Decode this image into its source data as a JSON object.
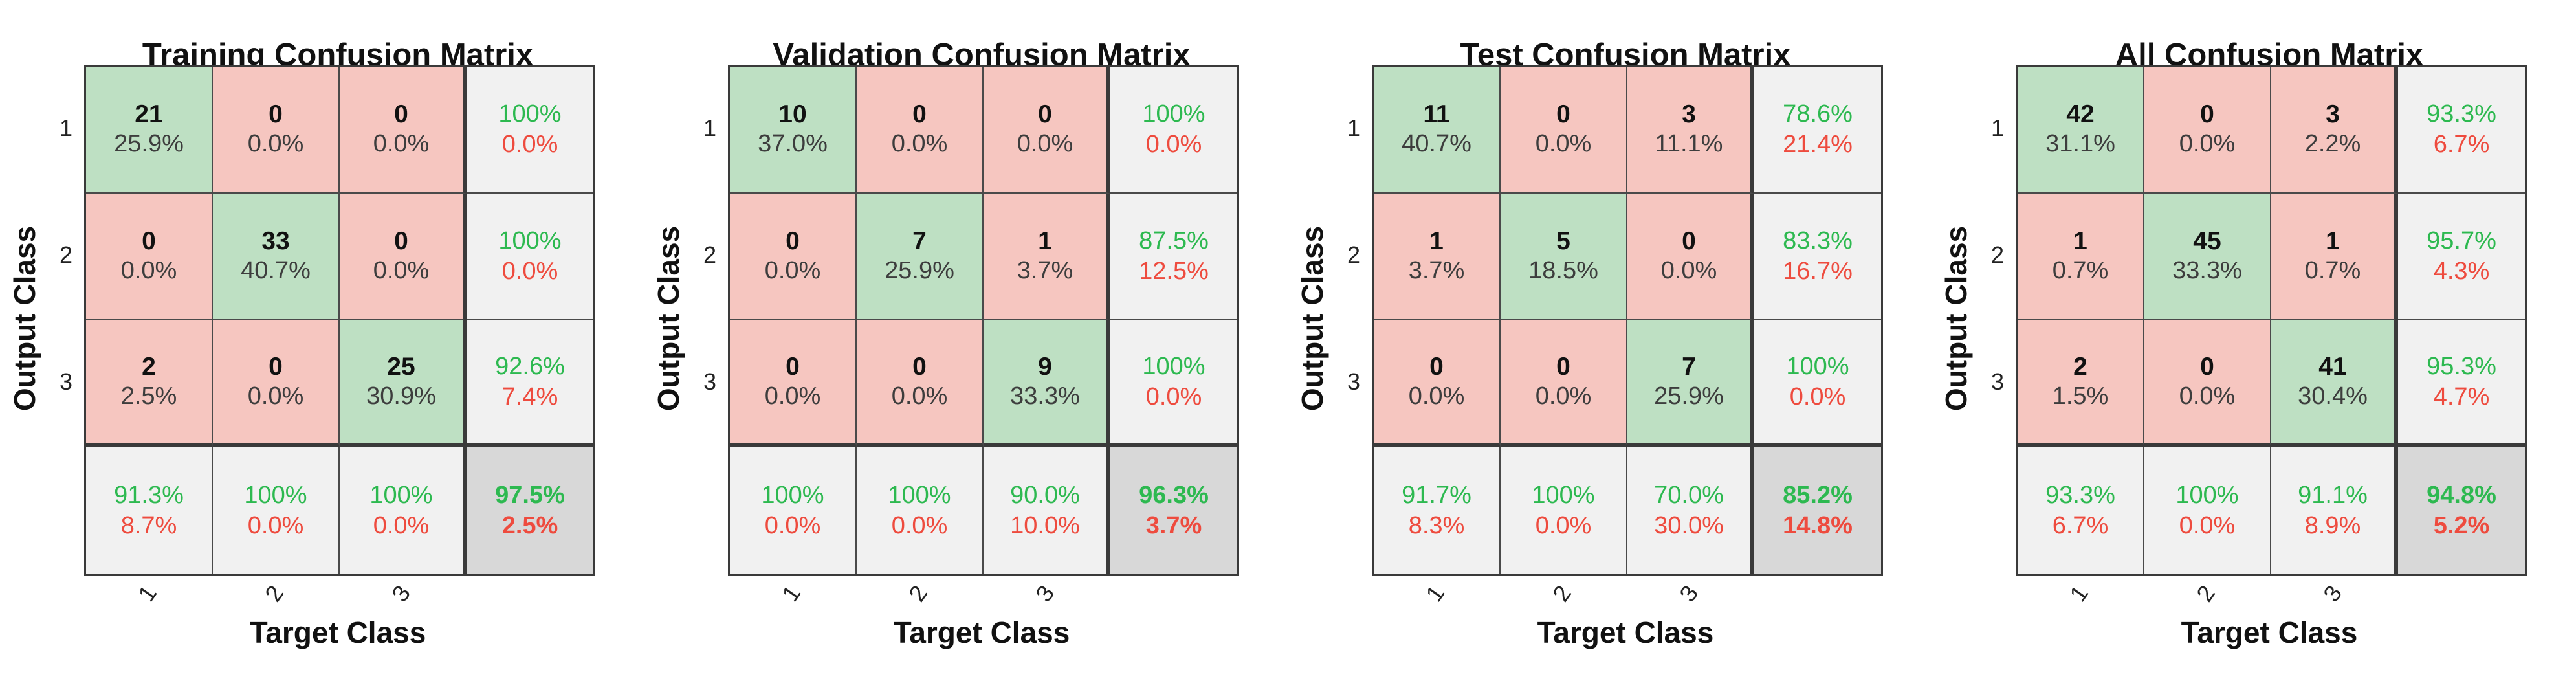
{
  "figure": {
    "x_axis_label": "Target Class",
    "y_axis_label": "Output Class",
    "class_ticks": [
      "1",
      "2",
      "3"
    ]
  },
  "colors": {
    "correct_cell_bg": "#BEE0C3",
    "incorrect_cell_bg": "#F6C6C0",
    "summary_cell_bg": "#F1F1F1",
    "total_cell_bg": "#D8D8D8",
    "good_text": "#2DB950",
    "bad_text": "#EE4B3E",
    "grid_line": "#4a4a4a"
  },
  "chart_data": [
    {
      "type": "heatmap",
      "title": "Training Confusion Matrix",
      "xlabel": "Target Class",
      "ylabel": "Output Class",
      "classes": [
        "1",
        "2",
        "3"
      ],
      "counts": [
        [
          21,
          0,
          0
        ],
        [
          0,
          33,
          0
        ],
        [
          2,
          0,
          25
        ]
      ],
      "count_pct": [
        [
          "25.9%",
          "0.0%",
          "0.0%"
        ],
        [
          "0.0%",
          "40.7%",
          "0.0%"
        ],
        [
          "2.5%",
          "0.0%",
          "30.9%"
        ]
      ],
      "row_summary": [
        [
          "100%",
          "0.0%"
        ],
        [
          "100%",
          "0.0%"
        ],
        [
          "92.6%",
          "7.4%"
        ]
      ],
      "col_summary": [
        [
          "91.3%",
          "8.7%"
        ],
        [
          "100%",
          "0.0%"
        ],
        [
          "100%",
          "0.0%"
        ]
      ],
      "overall": [
        "97.5%",
        "2.5%"
      ]
    },
    {
      "type": "heatmap",
      "title": "Validation Confusion Matrix",
      "xlabel": "Target Class",
      "ylabel": "Output Class",
      "classes": [
        "1",
        "2",
        "3"
      ],
      "counts": [
        [
          10,
          0,
          0
        ],
        [
          0,
          7,
          1
        ],
        [
          0,
          0,
          9
        ]
      ],
      "count_pct": [
        [
          "37.0%",
          "0.0%",
          "0.0%"
        ],
        [
          "0.0%",
          "25.9%",
          "3.7%"
        ],
        [
          "0.0%",
          "0.0%",
          "33.3%"
        ]
      ],
      "row_summary": [
        [
          "100%",
          "0.0%"
        ],
        [
          "87.5%",
          "12.5%"
        ],
        [
          "100%",
          "0.0%"
        ]
      ],
      "col_summary": [
        [
          "100%",
          "0.0%"
        ],
        [
          "100%",
          "0.0%"
        ],
        [
          "90.0%",
          "10.0%"
        ]
      ],
      "overall": [
        "96.3%",
        "3.7%"
      ]
    },
    {
      "type": "heatmap",
      "title": "Test Confusion Matrix",
      "xlabel": "Target Class",
      "ylabel": "Output Class",
      "classes": [
        "1",
        "2",
        "3"
      ],
      "counts": [
        [
          11,
          0,
          3
        ],
        [
          1,
          5,
          0
        ],
        [
          0,
          0,
          7
        ]
      ],
      "count_pct": [
        [
          "40.7%",
          "0.0%",
          "11.1%"
        ],
        [
          "3.7%",
          "18.5%",
          "0.0%"
        ],
        [
          "0.0%",
          "0.0%",
          "25.9%"
        ]
      ],
      "row_summary": [
        [
          "78.6%",
          "21.4%"
        ],
        [
          "83.3%",
          "16.7%"
        ],
        [
          "100%",
          "0.0%"
        ]
      ],
      "col_summary": [
        [
          "91.7%",
          "8.3%"
        ],
        [
          "100%",
          "0.0%"
        ],
        [
          "70.0%",
          "30.0%"
        ]
      ],
      "overall": [
        "85.2%",
        "14.8%"
      ]
    },
    {
      "type": "heatmap",
      "title": "All Confusion Matrix",
      "xlabel": "Target Class",
      "ylabel": "Output Class",
      "classes": [
        "1",
        "2",
        "3"
      ],
      "counts": [
        [
          42,
          0,
          3
        ],
        [
          1,
          45,
          1
        ],
        [
          2,
          0,
          41
        ]
      ],
      "count_pct": [
        [
          "31.1%",
          "0.0%",
          "2.2%"
        ],
        [
          "0.7%",
          "33.3%",
          "0.7%"
        ],
        [
          "1.5%",
          "0.0%",
          "30.4%"
        ]
      ],
      "row_summary": [
        [
          "93.3%",
          "6.7%"
        ],
        [
          "95.7%",
          "4.3%"
        ],
        [
          "95.3%",
          "4.7%"
        ]
      ],
      "col_summary": [
        [
          "93.3%",
          "6.7%"
        ],
        [
          "100%",
          "0.0%"
        ],
        [
          "91.1%",
          "8.9%"
        ]
      ],
      "overall": [
        "94.8%",
        "5.2%"
      ]
    }
  ]
}
